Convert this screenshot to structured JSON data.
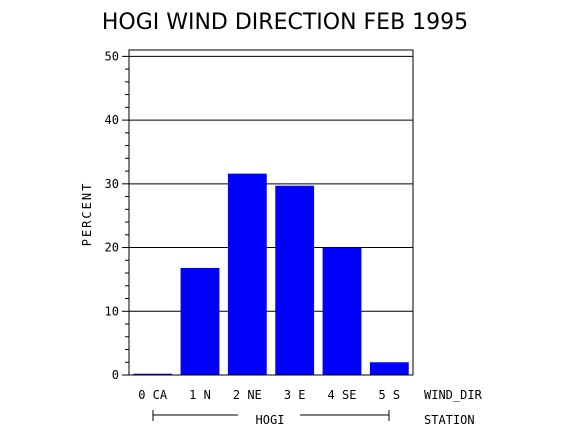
{
  "chart_data": {
    "type": "bar",
    "title": "HOGI WIND DIRECTION FEB 1995",
    "ylabel": "PERCENT",
    "xlabel": "WIND_DIR",
    "group_axis_label": "STATION",
    "group_label": "HOGI",
    "categories": [
      "0 CA",
      "1 N",
      "2 NE",
      "3 E",
      "4 SE",
      "5 S"
    ],
    "values": [
      0.2,
      16.8,
      31.6,
      29.7,
      20.0,
      2.0
    ],
    "ylim": [
      0,
      51
    ],
    "yticks": [
      0,
      10,
      20,
      30,
      40,
      50
    ],
    "grid": true,
    "colors": {
      "bar": "#0000ff",
      "axis": "#000000"
    }
  }
}
